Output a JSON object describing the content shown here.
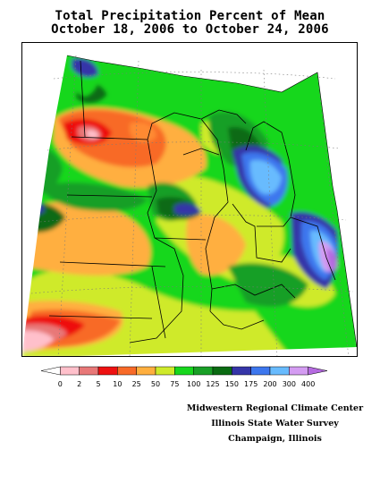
{
  "title": {
    "line1": "Total Precipitation Percent of Mean",
    "line2": "October 18, 2006 to October 24, 2006"
  },
  "legend": {
    "bins": [
      {
        "color": "#ffffff"
      },
      {
        "color": "#ffc0cb"
      },
      {
        "color": "#e87878"
      },
      {
        "color": "#ee1111"
      },
      {
        "color": "#f86a28"
      },
      {
        "color": "#ffaf3f"
      },
      {
        "color": "#cfea2b"
      },
      {
        "color": "#17d71d"
      },
      {
        "color": "#199f26"
      },
      {
        "color": "#0a6b12"
      },
      {
        "color": "#3535a8"
      },
      {
        "color": "#3d77ee"
      },
      {
        "color": "#68bbfe"
      },
      {
        "color": "#d49cf2"
      },
      {
        "color": "#b56ae0"
      }
    ],
    "labels": [
      "0",
      "2",
      "5",
      "10",
      "25",
      "50",
      "75",
      "100",
      "125",
      "150",
      "175",
      "200",
      "300",
      "400"
    ]
  },
  "credits": {
    "line1": "Midwestern Regional Climate Center",
    "line2": "Illinois State Water Survey",
    "line3": "Champaign, Illinois"
  }
}
